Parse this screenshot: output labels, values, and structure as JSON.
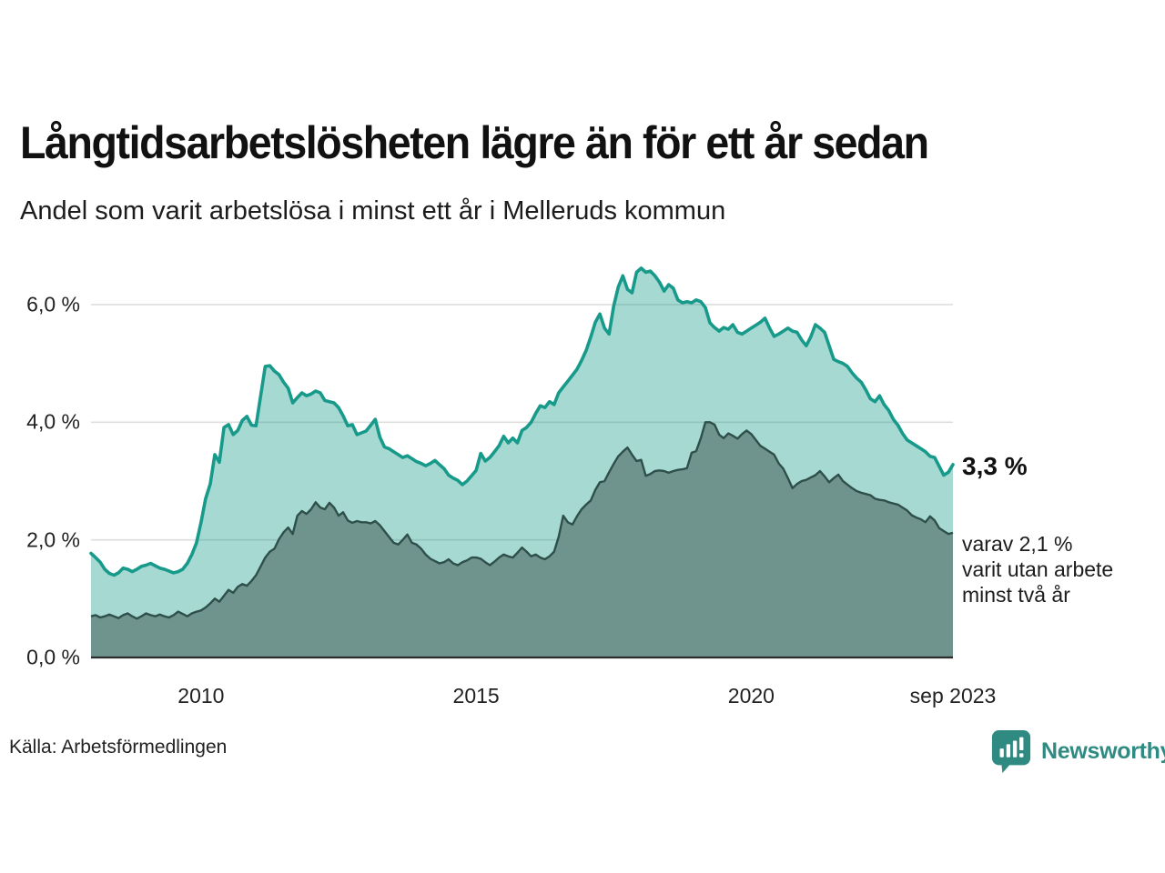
{
  "header": {
    "title": "Långtidsarbetslösheten lägre än för ett år sedan",
    "subtitle": "Andel som varit arbetslösa i minst ett år i Melleruds kommun"
  },
  "annotations": {
    "latest_total_label": "3,3 %",
    "secondary_lines": [
      "varav 2,1 %",
      "varit utan arbete",
      "minst två år"
    ]
  },
  "source_note": "Källa: Arbetsförmedlingen",
  "branding": {
    "name": "Newsworthy",
    "icon": "speech-bubble-bar-chart",
    "color": "#2f8b82"
  },
  "colors": {
    "series_total_line": "#189a8b",
    "series_total_fill": "rgba(24,154,139,0.38)",
    "series_two_year_fill": "#6f948e",
    "series_two_year_line": "#2e4f4a",
    "gridline": "#dedede",
    "axis_line": "#2b2b2b",
    "text": "#1a1a1a"
  },
  "chart_data": {
    "type": "area",
    "title": "Långtidsarbetslösheten lägre än för ett år sedan",
    "subtitle": "Andel som varit arbetslösa i minst ett år i Melleruds kommun",
    "unit": "%",
    "x_start": "2008-01",
    "x_end": "2023-09",
    "frequency": "monthly",
    "ylim": [
      0,
      6.8
    ],
    "grid": "horizontal",
    "legend": "none",
    "y_ticks": [
      {
        "value": 0,
        "label": "0,0 %"
      },
      {
        "value": 2,
        "label": "2,0 %"
      },
      {
        "value": 4,
        "label": "4,0 %"
      },
      {
        "value": 6,
        "label": "6,0 %"
      }
    ],
    "x_ticks": [
      {
        "month_index": 24,
        "label": "2010"
      },
      {
        "month_index": 84,
        "label": "2015"
      },
      {
        "month_index": 144,
        "label": "2020"
      },
      {
        "month_index": 188,
        "label": "sep 2023"
      }
    ],
    "latest": {
      "total_pct": 3.3,
      "two_years_pct": 2.1,
      "date": "sep 2023"
    },
    "series": [
      {
        "name": "Andel som varit arbetslösa i minst ett år",
        "values": [
          1.77,
          1.7,
          1.62,
          1.5,
          1.43,
          1.4,
          1.44,
          1.52,
          1.5,
          1.46,
          1.5,
          1.55,
          1.57,
          1.6,
          1.56,
          1.52,
          1.5,
          1.47,
          1.44,
          1.46,
          1.5,
          1.6,
          1.75,
          1.95,
          2.3,
          2.7,
          2.95,
          3.45,
          3.32,
          3.91,
          3.96,
          3.79,
          3.86,
          4.03,
          4.1,
          3.95,
          3.94,
          4.45,
          4.95,
          4.96,
          4.87,
          4.81,
          4.68,
          4.58,
          4.33,
          4.42,
          4.5,
          4.45,
          4.48,
          4.53,
          4.5,
          4.37,
          4.35,
          4.33,
          4.25,
          4.11,
          3.94,
          3.96,
          3.79,
          3.82,
          3.85,
          3.95,
          4.05,
          3.75,
          3.58,
          3.55,
          3.5,
          3.45,
          3.4,
          3.43,
          3.38,
          3.33,
          3.3,
          3.26,
          3.3,
          3.35,
          3.28,
          3.21,
          3.1,
          3.05,
          3.01,
          2.94,
          3.0,
          3.09,
          3.18,
          3.47,
          3.34,
          3.4,
          3.5,
          3.6,
          3.76,
          3.65,
          3.73,
          3.65,
          3.86,
          3.91,
          4.0,
          4.15,
          4.28,
          4.25,
          4.35,
          4.3,
          4.5,
          4.6,
          4.7,
          4.8,
          4.9,
          5.05,
          5.22,
          5.45,
          5.7,
          5.84,
          5.6,
          5.5,
          5.97,
          6.3,
          6.49,
          6.26,
          6.2,
          6.55,
          6.62,
          6.55,
          6.57,
          6.49,
          6.38,
          6.23,
          6.34,
          6.28,
          6.08,
          6.03,
          6.05,
          6.03,
          6.08,
          6.05,
          5.95,
          5.69,
          5.61,
          5.55,
          5.61,
          5.58,
          5.66,
          5.53,
          5.5,
          5.55,
          5.6,
          5.65,
          5.7,
          5.77,
          5.6,
          5.46,
          5.5,
          5.55,
          5.6,
          5.55,
          5.53,
          5.4,
          5.3,
          5.45,
          5.66,
          5.6,
          5.53,
          5.3,
          5.07,
          5.03,
          5.0,
          4.95,
          4.84,
          4.75,
          4.68,
          4.55,
          4.4,
          4.35,
          4.45,
          4.3,
          4.2,
          4.05,
          3.95,
          3.81,
          3.7,
          3.65,
          3.6,
          3.55,
          3.5,
          3.42,
          3.4,
          3.25,
          3.1,
          3.15,
          3.28
        ]
      },
      {
        "name": "varav utan arbete minst två år",
        "values": [
          0.7,
          0.72,
          0.68,
          0.7,
          0.73,
          0.7,
          0.67,
          0.72,
          0.75,
          0.7,
          0.66,
          0.7,
          0.75,
          0.72,
          0.7,
          0.73,
          0.7,
          0.68,
          0.72,
          0.78,
          0.74,
          0.7,
          0.75,
          0.78,
          0.8,
          0.85,
          0.92,
          1.0,
          0.95,
          1.05,
          1.15,
          1.1,
          1.2,
          1.25,
          1.22,
          1.3,
          1.4,
          1.55,
          1.7,
          1.8,
          1.85,
          2.01,
          2.13,
          2.21,
          2.1,
          2.41,
          2.49,
          2.44,
          2.52,
          2.64,
          2.55,
          2.52,
          2.63,
          2.55,
          2.41,
          2.47,
          2.33,
          2.29,
          2.32,
          2.3,
          2.3,
          2.28,
          2.32,
          2.25,
          2.15,
          2.05,
          1.95,
          1.92,
          2.0,
          2.09,
          1.95,
          1.92,
          1.85,
          1.75,
          1.68,
          1.64,
          1.6,
          1.62,
          1.67,
          1.6,
          1.57,
          1.62,
          1.65,
          1.7,
          1.7,
          1.68,
          1.62,
          1.57,
          1.63,
          1.7,
          1.75,
          1.72,
          1.7,
          1.78,
          1.87,
          1.8,
          1.72,
          1.75,
          1.7,
          1.67,
          1.72,
          1.8,
          2.05,
          2.41,
          2.3,
          2.26,
          2.4,
          2.52,
          2.6,
          2.67,
          2.85,
          2.98,
          3.0,
          3.15,
          3.29,
          3.42,
          3.5,
          3.57,
          3.45,
          3.34,
          3.36,
          3.09,
          3.12,
          3.17,
          3.18,
          3.17,
          3.14,
          3.17,
          3.19,
          3.2,
          3.22,
          3.48,
          3.51,
          3.73,
          4.0,
          4.0,
          3.96,
          3.79,
          3.73,
          3.81,
          3.77,
          3.72,
          3.8,
          3.86,
          3.8,
          3.7,
          3.6,
          3.55,
          3.5,
          3.45,
          3.3,
          3.21,
          3.05,
          2.88,
          2.95,
          3.0,
          3.02,
          3.06,
          3.1,
          3.17,
          3.08,
          2.98,
          3.05,
          3.11,
          3.0,
          2.94,
          2.88,
          2.83,
          2.8,
          2.78,
          2.76,
          2.7,
          2.68,
          2.67,
          2.64,
          2.62,
          2.6,
          2.55,
          2.5,
          2.42,
          2.38,
          2.35,
          2.3,
          2.4,
          2.33,
          2.2,
          2.15,
          2.1,
          2.12
        ]
      }
    ]
  }
}
